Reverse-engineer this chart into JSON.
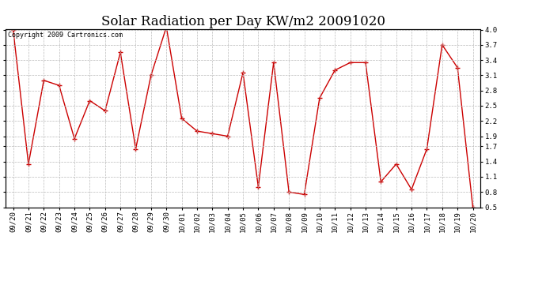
{
  "title": "Solar Radiation per Day KW/m2 20091020",
  "copyright": "Copyright 2009 Cartronics.com",
  "labels": [
    "09/20",
    "09/21",
    "09/22",
    "09/23",
    "09/24",
    "09/25",
    "09/26",
    "09/27",
    "09/28",
    "09/29",
    "09/30",
    "10/01",
    "10/02",
    "10/03",
    "10/04",
    "10/05",
    "10/06",
    "10/07",
    "10/08",
    "10/09",
    "10/10",
    "10/11",
    "10/12",
    "10/13",
    "10/14",
    "10/15",
    "10/16",
    "10/17",
    "10/18",
    "10/19",
    "10/20"
  ],
  "values": [
    4.0,
    1.35,
    3.0,
    2.9,
    1.85,
    2.6,
    2.4,
    3.55,
    1.65,
    3.1,
    4.05,
    2.25,
    2.0,
    1.95,
    1.9,
    3.15,
    0.9,
    3.35,
    0.8,
    0.75,
    2.65,
    3.2,
    3.35,
    3.35,
    1.0,
    1.35,
    0.85,
    1.65,
    3.7,
    3.25,
    0.5
  ],
  "line_color": "#cc0000",
  "marker": "+",
  "marker_color": "#cc0000",
  "bg_color": "#ffffff",
  "grid_color": "#bbbbbb",
  "ylim": [
    0.5,
    4.0
  ],
  "yticks": [
    0.5,
    0.8,
    1.1,
    1.4,
    1.7,
    1.9,
    2.2,
    2.5,
    2.8,
    3.1,
    3.4,
    3.7,
    4.0
  ],
  "title_fontsize": 12,
  "tick_fontsize": 6.5,
  "copyright_fontsize": 6
}
